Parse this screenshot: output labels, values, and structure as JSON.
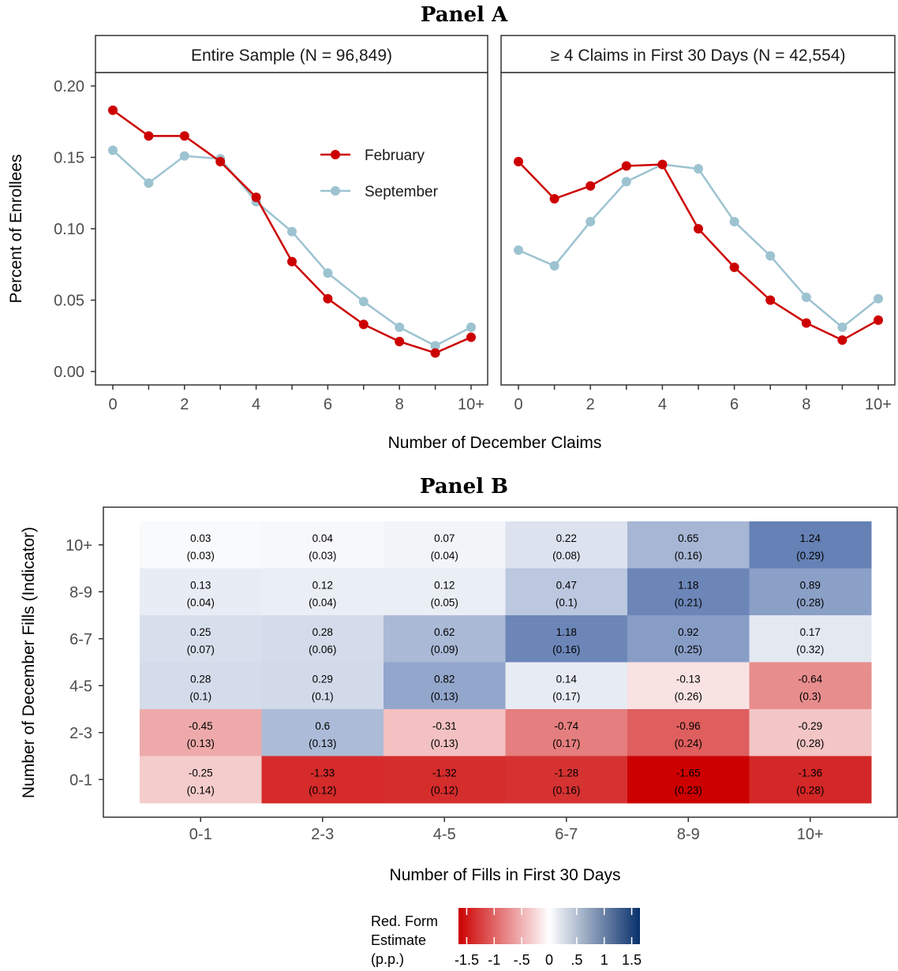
{
  "chart_data": [
    {
      "type": "line",
      "panel_title": "Panel A",
      "xlabel": "Number of December Claims",
      "ylabel": "Percent of Enrollees",
      "ylim": [
        0.0,
        0.21
      ],
      "y_ticks": [
        "0.00",
        "0.05",
        "0.10",
        "0.15",
        "0.20"
      ],
      "x_ticks": [
        "0",
        "2",
        "4",
        "6",
        "8",
        "10+"
      ],
      "x": [
        0,
        1,
        2,
        3,
        4,
        5,
        6,
        7,
        8,
        9,
        10
      ],
      "grid": false,
      "legend_position": "inside top-right of first facet",
      "colors": {
        "February": "#cc0000",
        "September": "#9dc3d1"
      },
      "facets": [
        {
          "title": "Entire Sample (N = 96,849)",
          "series": [
            {
              "name": "February",
              "values": [
                0.183,
                0.165,
                0.165,
                0.147,
                0.122,
                0.077,
                0.051,
                0.033,
                0.021,
                0.013,
                0.024
              ]
            },
            {
              "name": "September",
              "values": [
                0.155,
                0.132,
                0.151,
                0.149,
                0.119,
                0.098,
                0.069,
                0.049,
                0.031,
                0.018,
                0.031
              ]
            }
          ]
        },
        {
          "title": "≥ 4 Claims in First 30 Days (N = 42,554)",
          "series": [
            {
              "name": "February",
              "values": [
                0.147,
                0.121,
                0.13,
                0.144,
                0.145,
                0.1,
                0.073,
                0.05,
                0.034,
                0.022,
                0.036
              ]
            },
            {
              "name": "September",
              "values": [
                0.085,
                0.074,
                0.105,
                0.133,
                0.145,
                0.142,
                0.105,
                0.081,
                0.052,
                0.031,
                0.051
              ]
            }
          ]
        }
      ]
    },
    {
      "type": "heatmap",
      "panel_title": "Panel B",
      "xlabel": "Number of Fills in First 30 Days",
      "ylabel": "Number of December Fills (Indicator)",
      "x_categories": [
        "0-1",
        "2-3",
        "4-5",
        "6-7",
        "8-9",
        "10+"
      ],
      "y_categories": [
        "10+",
        "8-9",
        "6-7",
        "4-5",
        "2-3",
        "0-1"
      ],
      "values": [
        [
          "0.03",
          "0.04",
          "0.07",
          "0.22",
          "0.65",
          "1.24"
        ],
        [
          "0.13",
          "0.12",
          "0.12",
          "0.47",
          "1.18",
          "0.89"
        ],
        [
          "0.25",
          "0.28",
          "0.62",
          "1.18",
          "0.92",
          "0.17"
        ],
        [
          "0.28",
          "0.29",
          "0.82",
          "0.14",
          "-0.13",
          "-0.64"
        ],
        [
          "-0.45",
          "0.6",
          "-0.31",
          "-0.74",
          "-0.96",
          "-0.29"
        ],
        [
          "-0.25",
          "-1.33",
          "-1.32",
          "-1.28",
          "-1.65",
          "-1.36"
        ]
      ],
      "std_errors": [
        [
          "(0.03)",
          "(0.03)",
          "(0.04)",
          "(0.08)",
          "(0.16)",
          "(0.29)"
        ],
        [
          "(0.04)",
          "(0.04)",
          "(0.05)",
          "(0.1)",
          "(0.21)",
          "(0.28)"
        ],
        [
          "(0.07)",
          "(0.06)",
          "(0.09)",
          "(0.16)",
          "(0.25)",
          "(0.32)"
        ],
        [
          "(0.1)",
          "(0.1)",
          "(0.13)",
          "(0.17)",
          "(0.26)",
          "(0.3)"
        ],
        [
          "(0.13)",
          "(0.13)",
          "(0.13)",
          "(0.17)",
          "(0.24)",
          "(0.28)"
        ],
        [
          "(0.14)",
          "(0.12)",
          "(0.12)",
          "(0.16)",
          "(0.23)",
          "(0.28)"
        ]
      ],
      "colorbar": {
        "title_lines": [
          "Red. Form",
          "Estimate",
          "(p.p.)"
        ],
        "range": [
          -1.65,
          1.65
        ],
        "ticks": [
          -1.5,
          -1,
          -0.5,
          0,
          0.5,
          1,
          1.5
        ],
        "tick_labels": [
          "-1.5",
          "-1",
          "-.5",
          "0",
          ".5",
          "1",
          "1.5"
        ],
        "low_color": "#cc0000",
        "mid_color": "#ffffff",
        "high_color": "#08306b"
      }
    }
  ]
}
